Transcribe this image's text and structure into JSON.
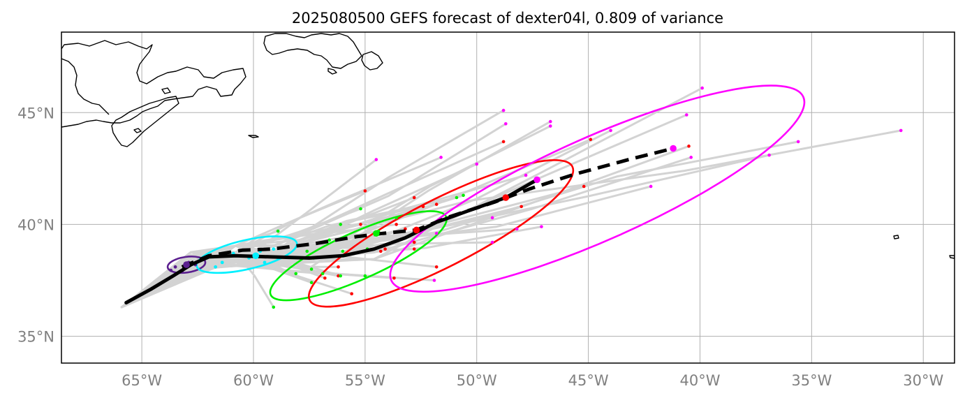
{
  "title": "2025080500 GEFS forecast of dexter04l, 0.809 of variance",
  "map_extent": {
    "lon": [
      -68.6,
      -28.6
    ],
    "lat": [
      33.8,
      48.6
    ]
  },
  "colors": {
    "background": "#ffffff",
    "coastline": "#000000",
    "gridline": "#b0b0b0",
    "ensemble_track": "#d3d3d3",
    "mean_track": "#000000",
    "ellipse_day1": "#5b1f8f",
    "ellipse_day2": "#00f0ff",
    "ellipse_day3": "#00ee00",
    "ellipse_day4": "#ff0000",
    "ellipse_day5": "#ff00ff",
    "tick_label": "#808080"
  },
  "axes": {
    "x_ticks": [
      {
        "lon": -65,
        "label": "65°W"
      },
      {
        "lon": -60,
        "label": "60°W"
      },
      {
        "lon": -55,
        "label": "55°W"
      },
      {
        "lon": -50,
        "label": "50°W"
      },
      {
        "lon": -45,
        "label": "45°W"
      },
      {
        "lon": -40,
        "label": "40°W"
      },
      {
        "lon": -35,
        "label": "35°W"
      },
      {
        "lon": -30,
        "label": "30°W"
      }
    ],
    "y_ticks": [
      {
        "lat": 45,
        "label": "45°N"
      },
      {
        "lat": 40,
        "label": "40°N"
      },
      {
        "lat": 35,
        "label": "35°N"
      }
    ],
    "grid": true
  },
  "chart_data": {
    "type": "map",
    "storm": "dexter04l",
    "model": "GEFS",
    "init_time": "2025080500",
    "variance_explained": 0.809,
    "mean_track_solid": [
      [
        -65.7,
        36.5
      ],
      [
        -64.6,
        37.1
      ],
      [
        -63.6,
        37.7
      ],
      [
        -62.8,
        38.2
      ],
      [
        -62.0,
        38.55
      ],
      [
        -60.8,
        38.6
      ],
      [
        -59.2,
        38.55
      ],
      [
        -57.5,
        38.5
      ],
      [
        -56.0,
        38.6
      ],
      [
        -54.6,
        38.9
      ],
      [
        -53.2,
        39.4
      ],
      [
        -51.8,
        40.1
      ],
      [
        -50.4,
        40.6
      ],
      [
        -48.7,
        41.2
      ],
      [
        -47.3,
        42.0
      ]
    ],
    "mean_track_dashed": [
      [
        -63.2,
        38.1
      ],
      [
        -62.0,
        38.6
      ],
      [
        -60.5,
        38.85
      ],
      [
        -59.2,
        38.9
      ],
      [
        -57.2,
        39.15
      ],
      [
        -55.4,
        39.45
      ],
      [
        -54.2,
        39.6
      ],
      [
        -52.7,
        39.75
      ],
      [
        -51.2,
        40.35
      ],
      [
        -49.2,
        41.0
      ],
      [
        -47.6,
        41.6
      ],
      [
        -45.6,
        42.25
      ],
      [
        -43.2,
        42.9
      ],
      [
        -41.2,
        43.4
      ]
    ],
    "mean_positions": [
      {
        "day": 1,
        "lon": -63.0,
        "lat": 38.2,
        "color": "#5b1f8f"
      },
      {
        "day": 2,
        "lon": -59.9,
        "lat": 38.6,
        "color": "#00f0ff"
      },
      {
        "day": 3,
        "lon": -54.5,
        "lat": 39.6,
        "color": "#00ee00"
      },
      {
        "day": 4,
        "lon": -48.7,
        "lat": 41.2,
        "color": "#ff0000"
      },
      {
        "day": 4.5,
        "lon": -52.7,
        "lat": 39.75,
        "color": "#ff0000"
      },
      {
        "day": 5,
        "lon": -47.3,
        "lat": 42.0,
        "color": "#ff00ff"
      },
      {
        "day": 5.5,
        "lon": -41.2,
        "lat": 43.4,
        "color": "#ff00ff"
      }
    ],
    "uncertainty_ellipses": [
      {
        "day": 1,
        "cx": -63.0,
        "cy": 38.2,
        "rx_deg": 0.85,
        "ry_deg": 0.35,
        "tilt_deg": 8,
        "color": "#5b1f8f"
      },
      {
        "day": 2,
        "cx": -60.3,
        "cy": 38.65,
        "rx_deg": 2.3,
        "ry_deg": 0.65,
        "tilt_deg": 13,
        "color": "#00f0ff"
      },
      {
        "day": 3,
        "cx": -55.3,
        "cy": 38.6,
        "rx_deg": 4.3,
        "ry_deg": 1.05,
        "tilt_deg": 24,
        "color": "#00ee00"
      },
      {
        "day": 4,
        "cx": -51.6,
        "cy": 39.6,
        "rx_deg": 6.6,
        "ry_deg": 1.5,
        "tilt_deg": 27,
        "color": "#ff0000"
      },
      {
        "day": 5,
        "cx": -44.6,
        "cy": 41.6,
        "rx_deg": 10.1,
        "ry_deg": 2.3,
        "tilt_deg": 24,
        "color": "#ff00ff"
      }
    ],
    "ensemble_endpoints": [
      {
        "lon": -39.9,
        "lat": 46.1,
        "color": "#ff00ff"
      },
      {
        "lon": -40.6,
        "lat": 44.9,
        "color": "#ff00ff"
      },
      {
        "lon": -48.8,
        "lat": 45.1,
        "color": "#ff00ff"
      },
      {
        "lon": -48.7,
        "lat": 44.5,
        "color": "#ff00ff"
      },
      {
        "lon": -46.7,
        "lat": 44.6,
        "color": "#ff00ff"
      },
      {
        "lon": -46.7,
        "lat": 44.4,
        "color": "#ff00ff"
      },
      {
        "lon": -44.0,
        "lat": 44.2,
        "color": "#ff00ff"
      },
      {
        "lon": -31.0,
        "lat": 44.2,
        "color": "#ff00ff"
      },
      {
        "lon": -35.6,
        "lat": 43.7,
        "color": "#ff00ff"
      },
      {
        "lon": -40.4,
        "lat": 43.0,
        "color": "#ff00ff"
      },
      {
        "lon": -36.9,
        "lat": 43.1,
        "color": "#ff00ff"
      },
      {
        "lon": -51.6,
        "lat": 43.0,
        "color": "#ff00ff"
      },
      {
        "lon": -54.5,
        "lat": 42.9,
        "color": "#ff00ff"
      },
      {
        "lon": -50.0,
        "lat": 42.7,
        "color": "#ff00ff"
      },
      {
        "lon": -47.8,
        "lat": 42.2,
        "color": "#ff00ff"
      },
      {
        "lon": -42.2,
        "lat": 41.7,
        "color": "#ff00ff"
      },
      {
        "lon": -49.3,
        "lat": 40.3,
        "color": "#ff00ff"
      },
      {
        "lon": -48.2,
        "lat": 39.8,
        "color": "#ff00ff"
      },
      {
        "lon": -47.1,
        "lat": 39.9,
        "color": "#ff00ff"
      },
      {
        "lon": -51.8,
        "lat": 39.6,
        "color": "#ff00ff"
      },
      {
        "lon": -49.3,
        "lat": 39.2,
        "color": "#ff00ff"
      },
      {
        "lon": -51.9,
        "lat": 37.5,
        "color": "#ff00ff"
      },
      {
        "lon": -44.9,
        "lat": 43.8,
        "color": "#ff0000"
      },
      {
        "lon": -48.8,
        "lat": 43.7,
        "color": "#ff0000"
      },
      {
        "lon": -40.5,
        "lat": 43.5,
        "color": "#ff0000"
      },
      {
        "lon": -45.2,
        "lat": 41.7,
        "color": "#ff0000"
      },
      {
        "lon": -55.0,
        "lat": 41.5,
        "color": "#ff0000"
      },
      {
        "lon": -52.8,
        "lat": 41.2,
        "color": "#ff0000"
      },
      {
        "lon": -51.8,
        "lat": 40.9,
        "color": "#ff0000"
      },
      {
        "lon": -52.4,
        "lat": 40.8,
        "color": "#ff0000"
      },
      {
        "lon": -48.0,
        "lat": 40.8,
        "color": "#ff0000"
      },
      {
        "lon": -55.2,
        "lat": 40.0,
        "color": "#ff0000"
      },
      {
        "lon": -53.6,
        "lat": 40.0,
        "color": "#ff0000"
      },
      {
        "lon": -53.2,
        "lat": 39.8,
        "color": "#ff0000"
      },
      {
        "lon": -52.8,
        "lat": 39.2,
        "color": "#ff0000"
      },
      {
        "lon": -54.1,
        "lat": 38.9,
        "color": "#ff0000"
      },
      {
        "lon": -54.3,
        "lat": 38.8,
        "color": "#ff0000"
      },
      {
        "lon": -52.8,
        "lat": 38.9,
        "color": "#ff0000"
      },
      {
        "lon": -51.8,
        "lat": 38.1,
        "color": "#ff0000"
      },
      {
        "lon": -56.2,
        "lat": 38.1,
        "color": "#ff0000"
      },
      {
        "lon": -56.2,
        "lat": 37.7,
        "color": "#ff0000"
      },
      {
        "lon": -56.8,
        "lat": 37.6,
        "color": "#ff0000"
      },
      {
        "lon": -53.7,
        "lat": 37.6,
        "color": "#ff0000"
      },
      {
        "lon": -55.6,
        "lat": 36.9,
        "color": "#ff0000"
      },
      {
        "lon": -50.9,
        "lat": 41.2,
        "color": "#00ee00"
      },
      {
        "lon": -50.6,
        "lat": 41.3,
        "color": "#00ee00"
      },
      {
        "lon": -55.2,
        "lat": 40.7,
        "color": "#00ee00"
      },
      {
        "lon": -53.6,
        "lat": 40.3,
        "color": "#00ee00"
      },
      {
        "lon": -56.1,
        "lat": 40.0,
        "color": "#00ee00"
      },
      {
        "lon": -54.4,
        "lat": 39.7,
        "color": "#00ee00"
      },
      {
        "lon": -58.9,
        "lat": 39.7,
        "color": "#00ee00"
      },
      {
        "lon": -56.6,
        "lat": 39.3,
        "color": "#00ee00"
      },
      {
        "lon": -57.6,
        "lat": 38.8,
        "color": "#00ee00"
      },
      {
        "lon": -56.0,
        "lat": 38.8,
        "color": "#00ee00"
      },
      {
        "lon": -54.9,
        "lat": 38.9,
        "color": "#00ee00"
      },
      {
        "lon": -57.3,
        "lat": 38.5,
        "color": "#00ee00"
      },
      {
        "lon": -57.4,
        "lat": 38.0,
        "color": "#00ee00"
      },
      {
        "lon": -56.9,
        "lat": 37.8,
        "color": "#00ee00"
      },
      {
        "lon": -58.1,
        "lat": 37.8,
        "color": "#00ee00"
      },
      {
        "lon": -56.1,
        "lat": 37.7,
        "color": "#00ee00"
      },
      {
        "lon": -55.0,
        "lat": 37.7,
        "color": "#00ee00"
      },
      {
        "lon": -57.4,
        "lat": 37.4,
        "color": "#00ee00"
      },
      {
        "lon": -59.1,
        "lat": 36.3,
        "color": "#00ee00"
      }
    ]
  }
}
